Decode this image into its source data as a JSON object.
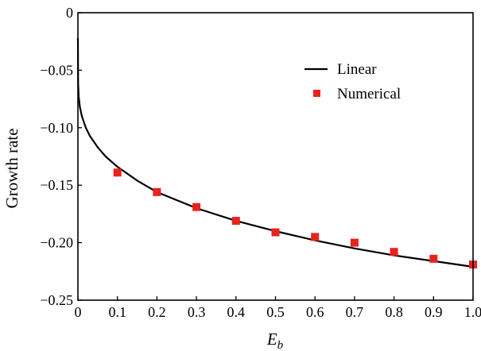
{
  "chart_data": {
    "type": "line",
    "title": "",
    "xlabel": "E",
    "xlabel_sub": "b",
    "ylabel": "Growth rate",
    "xlim": [
      0,
      1.0
    ],
    "ylim": [
      -0.25,
      0
    ],
    "x_ticks": [
      0,
      0.1,
      0.2,
      0.3,
      0.4,
      0.5,
      0.6,
      0.7,
      0.8,
      0.9,
      1.0
    ],
    "x_tick_labels": [
      "0",
      "0.1",
      "0.2",
      "0.3",
      "0.4",
      "0.5",
      "0.6",
      "0.7",
      "0.8",
      "0.9",
      "1.0"
    ],
    "y_ticks": [
      0,
      -0.05,
      -0.1,
      -0.15,
      -0.2,
      -0.25
    ],
    "y_tick_labels": [
      "0",
      "−0.05",
      "−0.10",
      "−0.15",
      "−0.20",
      "−0.25"
    ],
    "grid": false,
    "legend_position": "top-right",
    "series": [
      {
        "name": "Linear",
        "kind": "line",
        "color": "#000000",
        "x": [
          0.0,
          0.0005,
          0.002,
          0.005,
          0.01,
          0.02,
          0.03,
          0.05,
          0.07,
          0.1,
          0.15,
          0.2,
          0.3,
          0.4,
          0.5,
          0.6,
          0.7,
          0.8,
          0.9,
          1.0
        ],
        "y": [
          -0.022,
          -0.061,
          -0.073,
          -0.082,
          -0.09,
          -0.1,
          -0.107,
          -0.117,
          -0.125,
          -0.134,
          -0.146,
          -0.156,
          -0.17,
          -0.181,
          -0.19,
          -0.198,
          -0.205,
          -0.211,
          -0.216,
          -0.221
        ]
      },
      {
        "name": "Numerical",
        "kind": "scatter",
        "color": "#e8231e",
        "x": [
          0.1,
          0.2,
          0.3,
          0.4,
          0.5,
          0.6,
          0.7,
          0.8,
          0.9,
          1.0
        ],
        "y": [
          -0.139,
          -0.156,
          -0.169,
          -0.181,
          -0.191,
          -0.195,
          -0.2,
          -0.208,
          -0.214,
          -0.219
        ]
      }
    ]
  }
}
